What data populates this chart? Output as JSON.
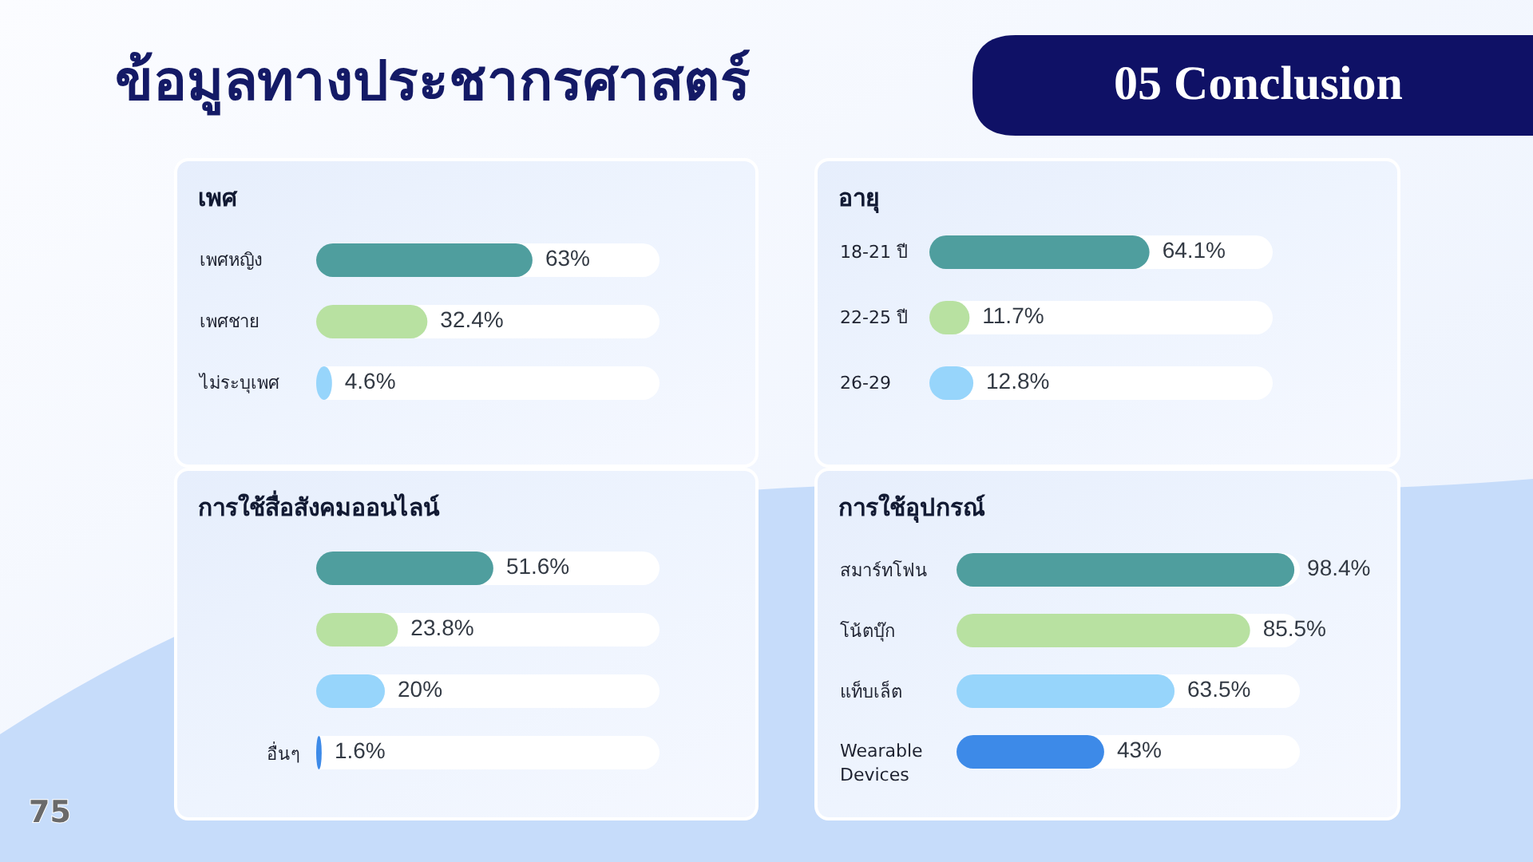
{
  "chart_data": [
    {
      "type": "other",
      "title": "ข้อมูลทางประชากรศาสตร์",
      "annotations": [
        "05 Conclusion",
        "75"
      ]
    },
    {
      "type": "bar",
      "orientation": "horizontal",
      "title": "เพศ",
      "categories": [
        "เพศหญิง",
        "เพศชาย",
        "ไม่ระบุเพศ"
      ],
      "values": [
        63,
        32.4,
        4.6
      ],
      "value_labels": [
        "63%",
        "32.4%",
        "4.6%"
      ],
      "colors": [
        "#4f9e9e",
        "#b8e1a1",
        "#97d5fb"
      ],
      "xlim": [
        0,
        100
      ],
      "tick_labels": "y"
    },
    {
      "type": "bar",
      "orientation": "horizontal",
      "title": "อายุ",
      "categories": [
        "18-21 ปี",
        "22-25 ปี",
        "26-29"
      ],
      "values": [
        64.1,
        11.7,
        12.8
      ],
      "value_labels": [
        "64.1%",
        "11.7%",
        "12.8%"
      ],
      "colors": [
        "#4f9e9e",
        "#b8e1a1",
        "#97d5fb"
      ],
      "xlim": [
        0,
        100
      ],
      "tick_labels": "y"
    },
    {
      "type": "bar",
      "orientation": "horizontal",
      "title": "การใช้สื่อสังคมออนไลน์",
      "categories": [
        null,
        null,
        null,
        "อื่นๆ"
      ],
      "values": [
        51.6,
        23.8,
        20,
        1.6
      ],
      "value_labels": [
        "51.6%",
        "23.8%",
        "20%",
        "1.6%"
      ],
      "colors": [
        "#4f9e9e",
        "#b8e1a1",
        "#97d5fb",
        "#3d8ae8"
      ],
      "xlim": [
        0,
        100
      ],
      "tick_labels": "y"
    },
    {
      "type": "bar",
      "orientation": "horizontal",
      "title": "การใช้อุปกรณ์",
      "categories": [
        "สมาร์ทโฟน",
        "โน้ตบุ๊ก",
        "แท็บเล็ต",
        "Wearable Devices"
      ],
      "values": [
        98.4,
        85.5,
        63.5,
        43
      ],
      "value_labels": [
        "98.4%",
        "85.5%",
        "63.5%",
        "43%"
      ],
      "colors": [
        "#4f9e9e",
        "#b8e1a1",
        "#97d5fb",
        "#3d8ae8"
      ],
      "xlim": [
        0,
        100
      ],
      "tick_labels": "y"
    }
  ]
}
